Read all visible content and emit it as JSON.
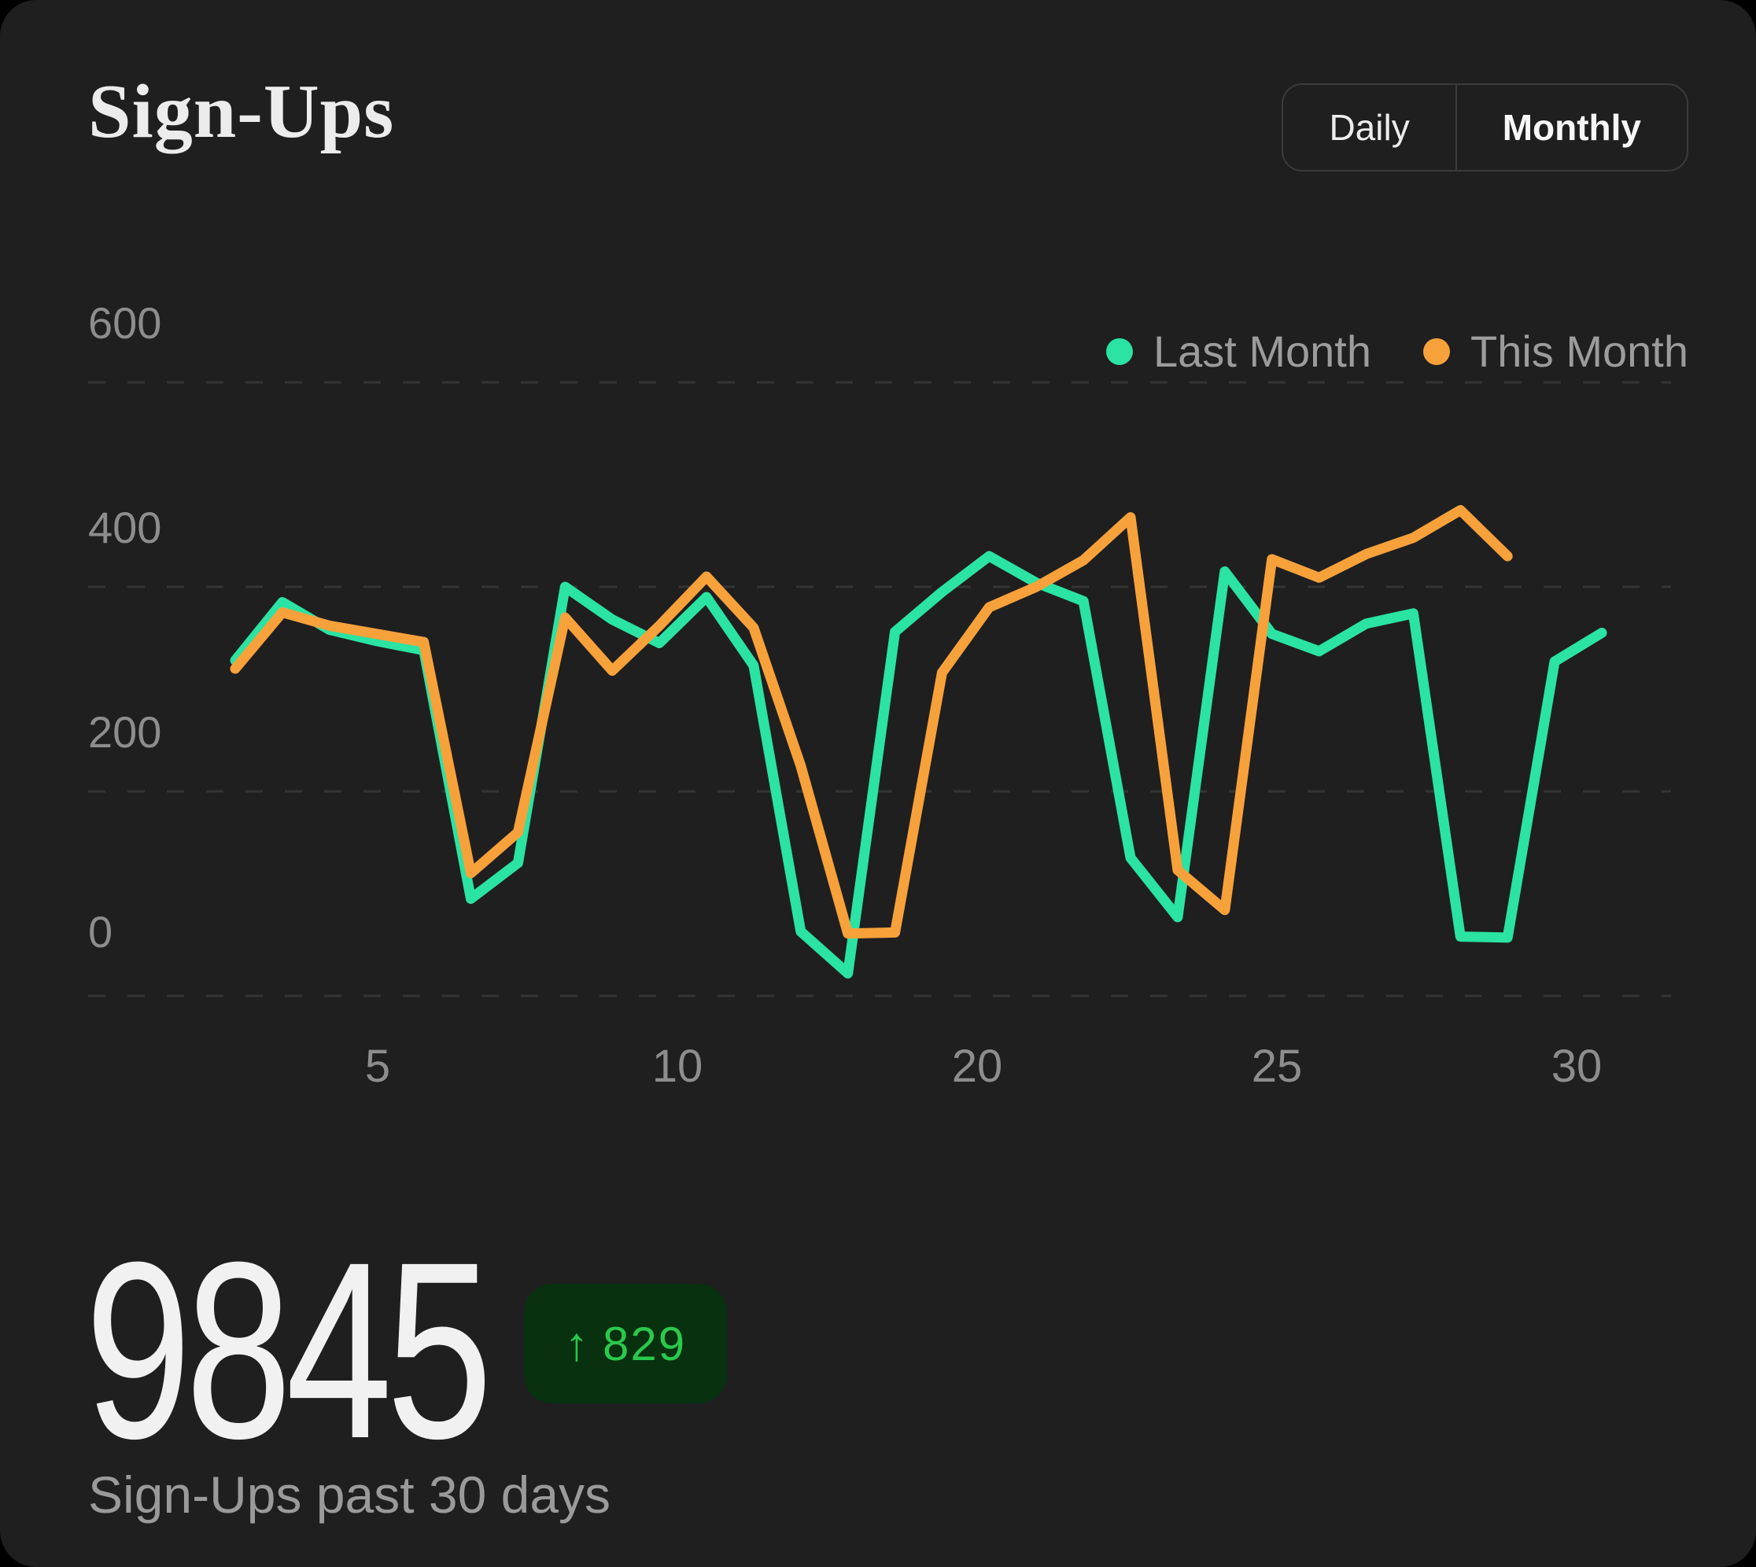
{
  "header": {
    "title": "Sign-Ups",
    "toggle": {
      "options": [
        "Daily",
        "Monthly"
      ],
      "selected": "Monthly"
    }
  },
  "chart_data": {
    "type": "line",
    "title": "Sign-Ups",
    "xlabel": "",
    "ylabel": "",
    "x": [
      1,
      2,
      3,
      4,
      5,
      6,
      7,
      8,
      9,
      10,
      11,
      12,
      13,
      14,
      15,
      16,
      17,
      18,
      19,
      20,
      21,
      22,
      23,
      24,
      25,
      26,
      27,
      28,
      29,
      30
    ],
    "series": [
      {
        "name": "Last Month",
        "color": "#2BE3A2",
        "values": [
          328,
          385,
          358,
          347,
          338,
          95,
          130,
          400,
          368,
          345,
          390,
          323,
          63,
          22,
          356,
          395,
          430,
          404,
          386,
          135,
          77,
          415,
          354,
          337,
          364,
          374,
          58,
          57,
          327,
          355
        ]
      },
      {
        "name": "This Month",
        "color": "#F7A13B",
        "values": [
          320,
          375,
          362,
          354,
          346,
          120,
          160,
          370,
          318,
          362,
          410,
          360,
          225,
          61,
          62,
          316,
          380,
          400,
          426,
          468,
          123,
          84,
          427,
          409,
          432,
          448,
          475,
          430
        ]
      }
    ],
    "y_ticks": [
      600,
      400,
      200,
      0
    ],
    "x_tick_labels": [
      "5",
      "10",
      "20",
      "25",
      "30"
    ],
    "ylim": [
      0,
      600
    ],
    "grid": "horizontal-dashed",
    "legend_position": "top-right"
  },
  "summary": {
    "value": "9845",
    "delta": "829",
    "delta_direction": "up",
    "delta_arrow": "↑",
    "caption": "Sign-Ups past 30 days"
  },
  "colors": {
    "card_background": "#1F1F20",
    "page_background": "#000000",
    "last_month_line": "#2BE3A2",
    "this_month_line": "#F7A13B",
    "gridline": "#4A4A4A",
    "axis_text": "#8D8D8D",
    "legend_text": "#9C9C9C",
    "title_text": "#ECECEC",
    "badge_background": "#07310F",
    "badge_text": "#2BC94C"
  }
}
